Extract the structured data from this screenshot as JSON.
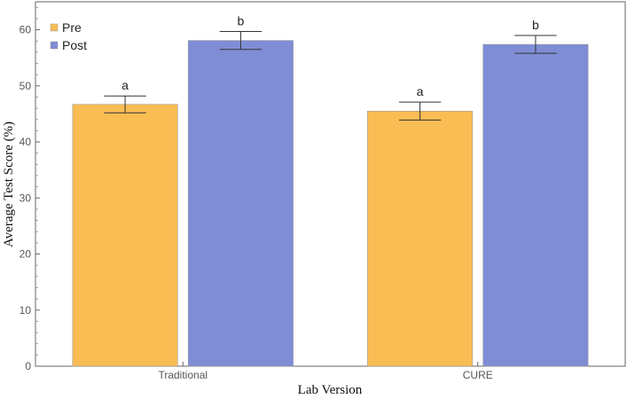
{
  "chart_data": {
    "type": "bar",
    "title": "",
    "xlabel": "Lab Version",
    "ylabel": "Average Test Score (%)",
    "categories": [
      "Traditional",
      "CURE"
    ],
    "ylim": [
      0,
      65
    ],
    "yticks": [
      0,
      10,
      20,
      30,
      40,
      50,
      60
    ],
    "grid": false,
    "legend_position": "top-left",
    "series": [
      {
        "name": "Pre",
        "color": "#F9BD54",
        "values": [
          46.7,
          45.5
        ],
        "error_low": [
          45.2,
          43.9
        ],
        "error_high": [
          48.2,
          47.1
        ],
        "annotations": [
          "a",
          "a"
        ]
      },
      {
        "name": "Post",
        "color": "#7F8DD6",
        "values": [
          58.1,
          57.4
        ],
        "error_low": [
          56.5,
          55.8
        ],
        "error_high": [
          59.7,
          59.0
        ],
        "annotations": [
          "b",
          "b"
        ]
      }
    ]
  }
}
